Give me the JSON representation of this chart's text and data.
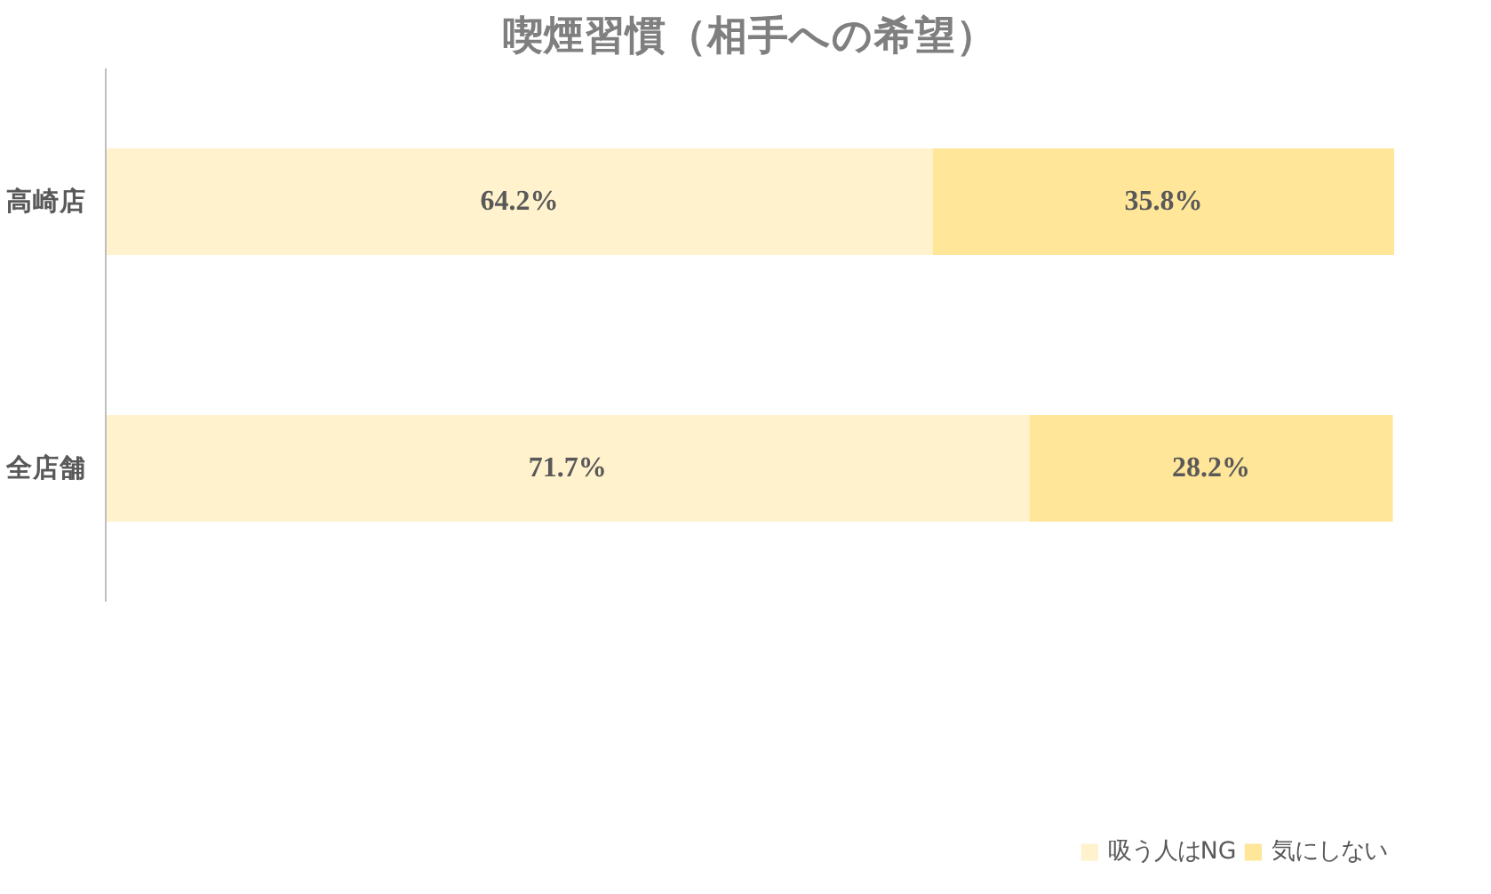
{
  "chart_data": {
    "type": "bar",
    "orientation": "horizontal",
    "stacked": true,
    "title": "喫煙習慣（相手への希望）",
    "categories": [
      "高崎店",
      "全店舗"
    ],
    "series": [
      {
        "name": "吸う人はNG",
        "color": "#fff2cc",
        "values": [
          64.2,
          71.7
        ],
        "value_labels": [
          "64.2%",
          "71.7%"
        ]
      },
      {
        "name": "気にしない",
        "color": "#ffe699",
        "values": [
          35.8,
          28.2
        ],
        "value_labels": [
          "35.8%",
          "28.2%"
        ]
      }
    ],
    "legend": "bottom",
    "grid": false
  }
}
